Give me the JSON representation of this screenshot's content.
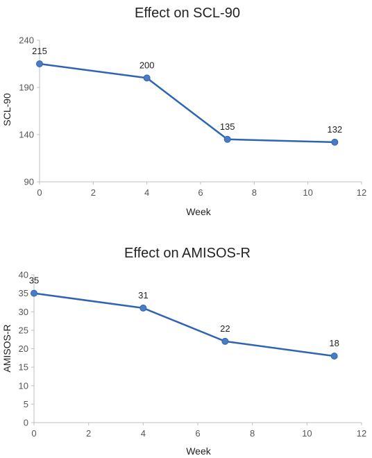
{
  "chart_data": [
    {
      "type": "line",
      "title": "Effect on SCL-90",
      "xlabel": "Week",
      "ylabel": "SCL-90",
      "xlim": [
        0,
        12
      ],
      "ylim": [
        90,
        240
      ],
      "xticks": [
        0,
        2,
        4,
        6,
        8,
        10,
        12
      ],
      "yticks": [
        90,
        140,
        190,
        240
      ],
      "grid": false,
      "legend": "none",
      "series": [
        {
          "x": [
            0,
            4,
            7,
            11
          ],
          "y": [
            215,
            200,
            135,
            132
          ],
          "labels": [
            "215",
            "200",
            "135",
            "132"
          ],
          "color": "#2e64b2",
          "marker_color": "#4a7cc4"
        }
      ]
    },
    {
      "type": "line",
      "title": "Effect on AMISOS-R",
      "xlabel": "Week",
      "ylabel": "AMISOS-R",
      "xlim": [
        0,
        12
      ],
      "ylim": [
        0,
        40
      ],
      "xticks": [
        0,
        2,
        4,
        6,
        8,
        10,
        12
      ],
      "yticks": [
        0,
        5,
        10,
        15,
        20,
        25,
        30,
        35,
        40
      ],
      "grid": false,
      "legend": "none",
      "series": [
        {
          "x": [
            0,
            4,
            7,
            11
          ],
          "y": [
            35,
            31,
            22,
            18
          ],
          "labels": [
            "35",
            "31",
            "22",
            "18"
          ],
          "color": "#2e64b2",
          "marker_color": "#4a7cc4"
        }
      ]
    }
  ],
  "colors": {
    "axis": "#bfbfbf",
    "text": "#222222",
    "tick_text": "#555555"
  }
}
